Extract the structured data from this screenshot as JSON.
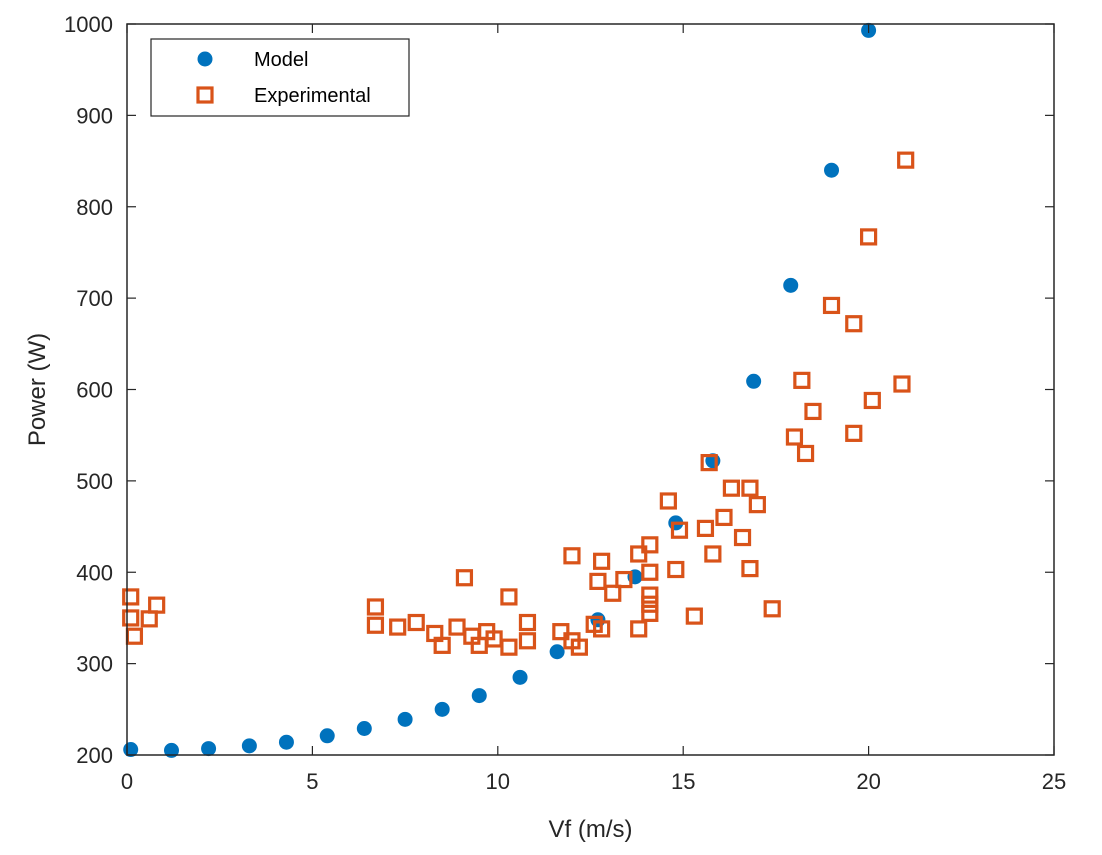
{
  "chart_data": {
    "type": "scatter",
    "title": "",
    "xlabel": "Vf (m/s)",
    "ylabel": "Power (W)",
    "xlim": [
      0,
      25
    ],
    "ylim": [
      200,
      1000
    ],
    "xticks": [
      0,
      5,
      10,
      15,
      20,
      25
    ],
    "yticks": [
      200,
      300,
      400,
      500,
      600,
      700,
      800,
      900,
      1000
    ],
    "grid": false,
    "legend": "top-left",
    "series": [
      {
        "name": "Model",
        "marker": "filled-circle",
        "color": "#0072BD",
        "points": [
          [
            0.1,
            206
          ],
          [
            1.2,
            205
          ],
          [
            2.2,
            207
          ],
          [
            3.3,
            210
          ],
          [
            4.3,
            214
          ],
          [
            5.4,
            221
          ],
          [
            6.4,
            229
          ],
          [
            7.5,
            239
          ],
          [
            8.5,
            250
          ],
          [
            9.5,
            265
          ],
          [
            10.6,
            285
          ],
          [
            11.6,
            313
          ],
          [
            12.7,
            348
          ],
          [
            13.7,
            395
          ],
          [
            14.8,
            454
          ],
          [
            15.8,
            522
          ],
          [
            16.9,
            609
          ],
          [
            17.9,
            714
          ],
          [
            19.0,
            840
          ],
          [
            20.0,
            993
          ]
        ]
      },
      {
        "name": "Experimental",
        "marker": "open-square",
        "color": "#D95319",
        "points": [
          [
            0.1,
            350
          ],
          [
            0.1,
            373
          ],
          [
            0.2,
            330
          ],
          [
            0.6,
            349
          ],
          [
            0.8,
            364
          ],
          [
            6.7,
            362
          ],
          [
            6.7,
            342
          ],
          [
            7.3,
            340
          ],
          [
            7.8,
            345
          ],
          [
            8.3,
            333
          ],
          [
            8.5,
            320
          ],
          [
            8.9,
            340
          ],
          [
            9.1,
            394
          ],
          [
            9.3,
            330
          ],
          [
            9.5,
            320
          ],
          [
            9.7,
            335
          ],
          [
            9.9,
            327
          ],
          [
            10.3,
            318
          ],
          [
            10.3,
            373
          ],
          [
            10.8,
            345
          ],
          [
            10.8,
            325
          ],
          [
            11.7,
            335
          ],
          [
            12.0,
            418
          ],
          [
            12.0,
            325
          ],
          [
            12.2,
            318
          ],
          [
            12.6,
            343
          ],
          [
            12.7,
            390
          ],
          [
            12.8,
            412
          ],
          [
            12.8,
            338
          ],
          [
            13.1,
            377
          ],
          [
            13.4,
            392
          ],
          [
            13.8,
            420
          ],
          [
            13.8,
            338
          ],
          [
            14.1,
            430
          ],
          [
            14.1,
            400
          ],
          [
            14.1,
            375
          ],
          [
            14.1,
            365
          ],
          [
            14.1,
            355
          ],
          [
            14.6,
            478
          ],
          [
            14.8,
            403
          ],
          [
            14.9,
            446
          ],
          [
            15.3,
            352
          ],
          [
            15.6,
            448
          ],
          [
            15.7,
            520
          ],
          [
            15.8,
            420
          ],
          [
            16.1,
            460
          ],
          [
            16.3,
            492
          ],
          [
            16.6,
            438
          ],
          [
            16.8,
            492
          ],
          [
            16.8,
            404
          ],
          [
            17.0,
            474
          ],
          [
            17.4,
            360
          ],
          [
            18.0,
            548
          ],
          [
            18.2,
            610
          ],
          [
            18.3,
            530
          ],
          [
            18.5,
            576
          ],
          [
            19.0,
            692
          ],
          [
            19.6,
            552
          ],
          [
            19.6,
            672
          ],
          [
            20.0,
            767
          ],
          [
            20.1,
            588
          ],
          [
            20.9,
            606
          ],
          [
            21.0,
            851
          ]
        ]
      }
    ]
  }
}
